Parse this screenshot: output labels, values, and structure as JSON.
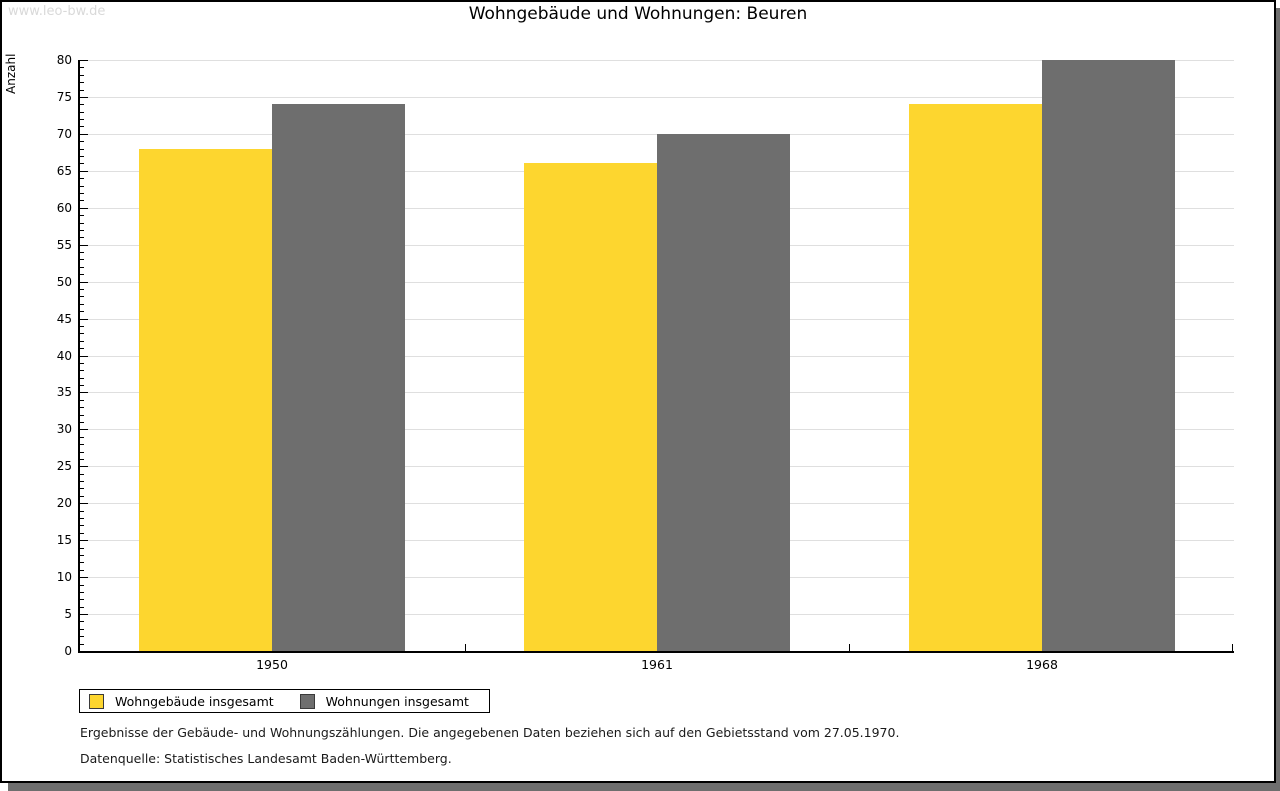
{
  "page": {
    "watermark": "www.leo-bw.de"
  },
  "chart_data": {
    "type": "bar",
    "title": "Wohngebäude und Wohnungen: Beuren",
    "ylabel": "Anzahl",
    "xlabel": "",
    "categories": [
      "1950",
      "1961",
      "1968"
    ],
    "series": [
      {
        "name": "Wohngebäude insgesamt",
        "color": "#FDD62F",
        "values": [
          68,
          66,
          74
        ]
      },
      {
        "name": "Wohnungen insgesamt",
        "color": "#6E6E6E",
        "values": [
          74,
          70,
          80
        ]
      }
    ],
    "ylim": [
      0,
      80
    ],
    "ytick_step": 5,
    "minor_tick_step": 1,
    "grid": "horizontal",
    "legend_position": "bottom-left"
  },
  "footer": {
    "note": "Ergebnisse der Gebäude- und Wohnungszählungen. Die angegebenen Daten beziehen sich auf den Gebietsstand vom 27.05.1970.",
    "source": "Datenquelle: Statistisches Landesamt Baden-Württemberg."
  },
  "colors": {
    "grid": "#DFDFDF",
    "axis": "#000000",
    "watermark": "#D9D9D9",
    "page_shadow": "#6E6E6E"
  }
}
